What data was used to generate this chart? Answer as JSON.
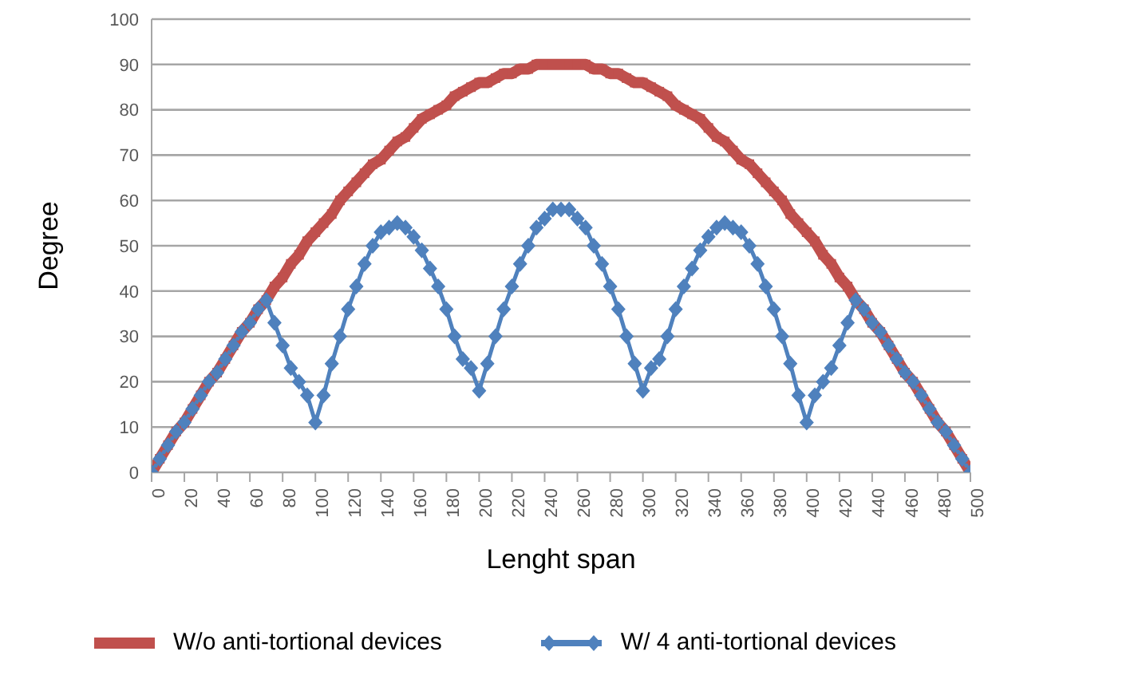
{
  "chart_data": {
    "type": "line",
    "xlabel": "Lenght span",
    "ylabel": "Degree",
    "x": [
      0,
      5,
      10,
      15,
      20,
      25,
      30,
      35,
      40,
      45,
      50,
      55,
      60,
      65,
      70,
      75,
      80,
      85,
      90,
      95,
      100,
      105,
      110,
      115,
      120,
      125,
      130,
      135,
      140,
      145,
      150,
      155,
      160,
      165,
      170,
      175,
      180,
      185,
      190,
      195,
      200,
      205,
      210,
      215,
      220,
      225,
      230,
      235,
      240,
      245,
      250,
      255,
      260,
      265,
      270,
      275,
      280,
      285,
      290,
      295,
      300,
      305,
      310,
      315,
      320,
      325,
      330,
      335,
      340,
      345,
      350,
      355,
      360,
      365,
      370,
      375,
      380,
      385,
      390,
      395,
      400,
      405,
      410,
      415,
      420,
      425,
      430,
      435,
      440,
      445,
      450,
      455,
      460,
      465,
      470,
      475,
      480,
      485,
      490,
      495,
      500
    ],
    "series": [
      {
        "name": "W/o anti-tortional devices",
        "color": "#c0504d",
        "marker": "square",
        "values": [
          0,
          3,
          6,
          9,
          11,
          14,
          17,
          20,
          22,
          25,
          28,
          31,
          33,
          36,
          38,
          41,
          43,
          46,
          48,
          51,
          53,
          55,
          57,
          60,
          62,
          64,
          66,
          68,
          69,
          71,
          73,
          74,
          76,
          78,
          79,
          80,
          81,
          83,
          84,
          85,
          86,
          86,
          87,
          88,
          88,
          89,
          89,
          90,
          90,
          90,
          90,
          90,
          90,
          90,
          89,
          89,
          88,
          88,
          87,
          86,
          86,
          85,
          84,
          83,
          81,
          80,
          79,
          78,
          76,
          74,
          73,
          71,
          69,
          68,
          66,
          64,
          62,
          60,
          57,
          55,
          53,
          51,
          48,
          46,
          43,
          41,
          38,
          36,
          33,
          31,
          28,
          25,
          22,
          20,
          17,
          14,
          11,
          9,
          6,
          3,
          0
        ]
      },
      {
        "name": "W/ 4 anti-tortional devices",
        "color": "#4f81bd",
        "marker": "diamond",
        "values": [
          0,
          3,
          6,
          9,
          11,
          14,
          17,
          20,
          22,
          25,
          28,
          31,
          33,
          36,
          38,
          33,
          28,
          23,
          20,
          17,
          11,
          17,
          24,
          30,
          36,
          41,
          46,
          50,
          53,
          54,
          55,
          54,
          52,
          49,
          45,
          41,
          36,
          30,
          25,
          23,
          18,
          24,
          30,
          36,
          41,
          46,
          50,
          54,
          56,
          58,
          58,
          58,
          56,
          54,
          50,
          46,
          41,
          36,
          30,
          24,
          18,
          23,
          25,
          30,
          36,
          41,
          45,
          49,
          52,
          54,
          55,
          54,
          53,
          50,
          46,
          41,
          36,
          30,
          24,
          17,
          11,
          17,
          20,
          23,
          28,
          33,
          38,
          36,
          33,
          31,
          28,
          25,
          22,
          20,
          17,
          14,
          11,
          9,
          6,
          3,
          0
        ]
      }
    ],
    "xlim": [
      0,
      500
    ],
    "xticks": [
      0,
      20,
      40,
      60,
      80,
      100,
      120,
      140,
      160,
      180,
      200,
      220,
      240,
      260,
      280,
      300,
      320,
      340,
      360,
      380,
      400,
      420,
      440,
      460,
      480,
      500
    ],
    "ylim": [
      0,
      100
    ],
    "yticks": [
      0,
      10,
      20,
      30,
      40,
      50,
      60,
      70,
      80,
      90,
      100
    ],
    "grid": "y",
    "legend": "bottom",
    "line_style": "solid"
  }
}
